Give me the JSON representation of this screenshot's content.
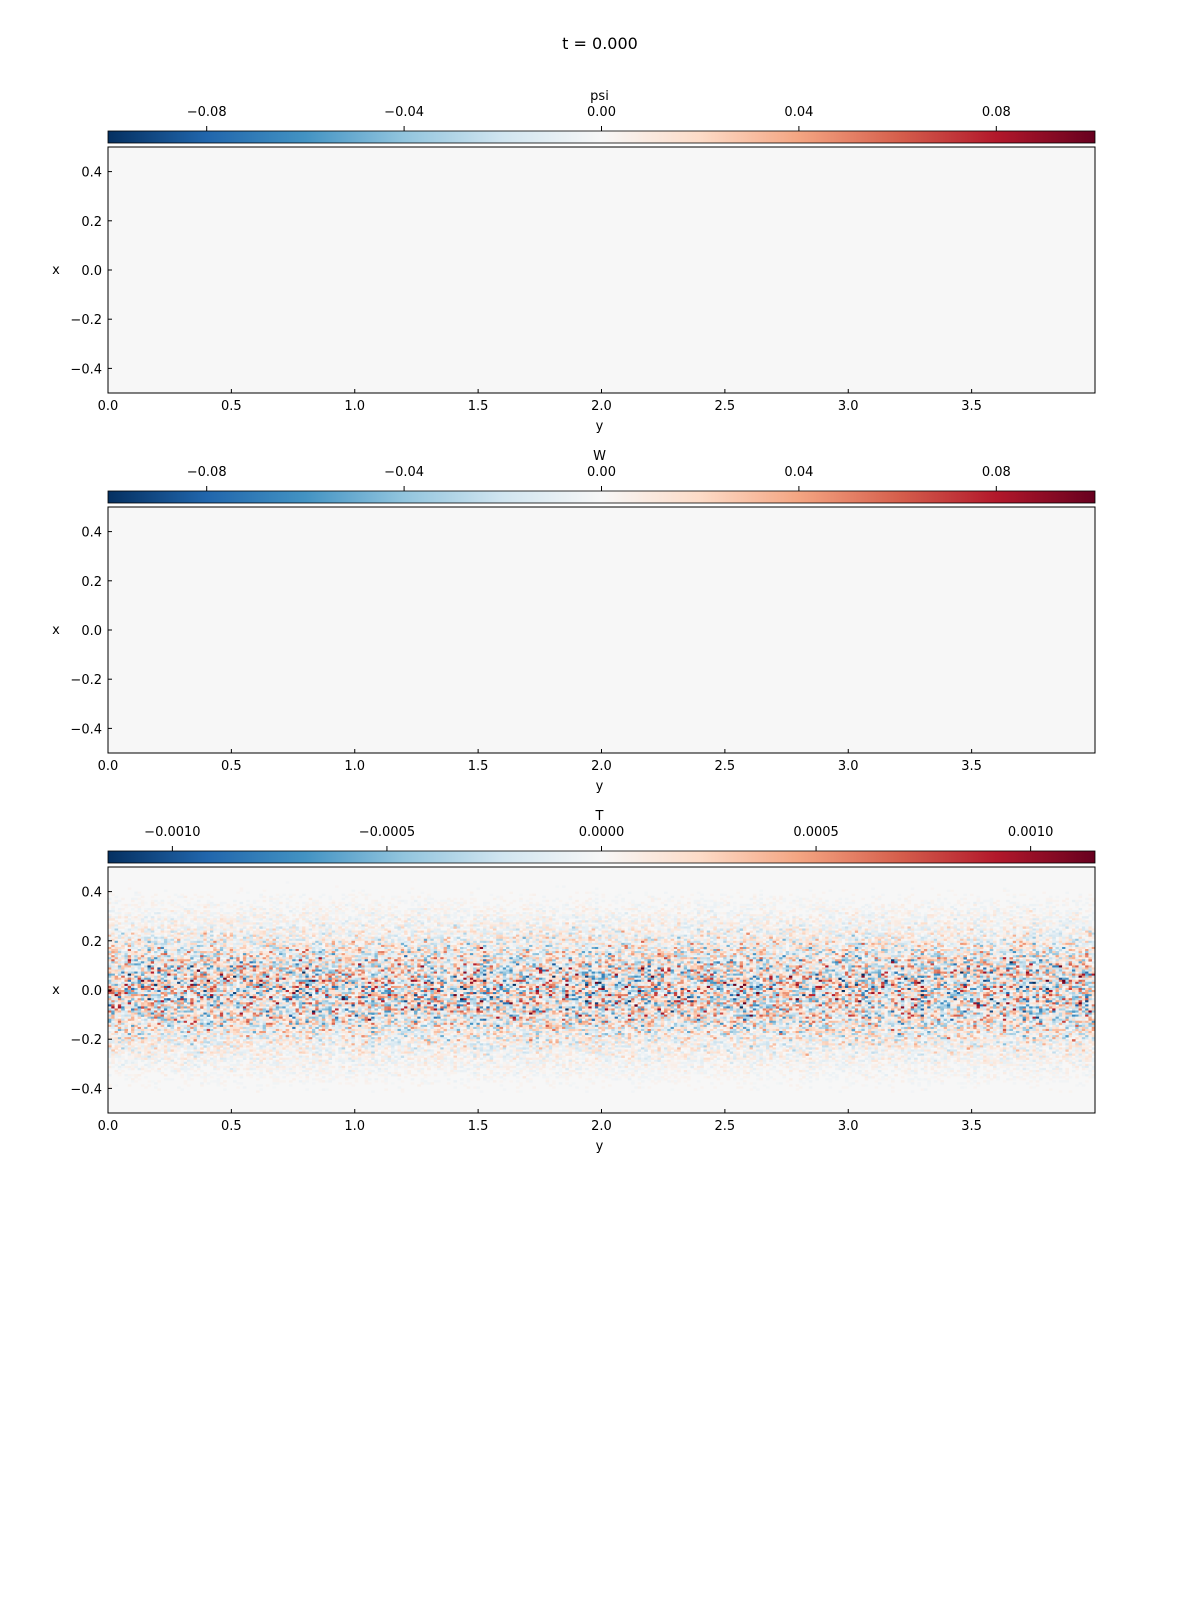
{
  "figure": {
    "title": "t = 0.000"
  },
  "colormap": [
    "#053061",
    "#2166ac",
    "#4393c3",
    "#92c5de",
    "#d1e5f0",
    "#f7f7f7",
    "#fddbc7",
    "#f4a582",
    "#d6604d",
    "#b2182b",
    "#67001f"
  ],
  "chart_data": [
    {
      "type": "heatmap",
      "colorbar_label": "psi",
      "colorbar_range": [
        -0.1,
        0.1
      ],
      "colorbar_ticks": [
        "−0.08",
        "−0.04",
        "0.00",
        "0.04",
        "0.08"
      ],
      "colorbar_tick_values": [
        -0.08,
        -0.04,
        0.0,
        0.04,
        0.08
      ],
      "xlabel": "y",
      "ylabel": "x",
      "xlim": [
        0,
        4
      ],
      "ylim": [
        -0.5,
        0.5
      ],
      "xticks": [
        "0.0",
        "0.5",
        "1.0",
        "1.5",
        "2.0",
        "2.5",
        "3.0",
        "3.5"
      ],
      "xtick_values": [
        0,
        0.5,
        1.0,
        1.5,
        2.0,
        2.5,
        3.0,
        3.5
      ],
      "yticks": [
        "0.4",
        "0.2",
        "0.0",
        "−0.2",
        "−0.4"
      ],
      "ytick_values": [
        0.4,
        0.2,
        0.0,
        -0.2,
        -0.4
      ],
      "field": "uniform",
      "field_value": 0.0
    },
    {
      "type": "heatmap",
      "colorbar_label": "W",
      "colorbar_range": [
        -0.1,
        0.1
      ],
      "colorbar_ticks": [
        "−0.08",
        "−0.04",
        "0.00",
        "0.04",
        "0.08"
      ],
      "colorbar_tick_values": [
        -0.08,
        -0.04,
        0.0,
        0.04,
        0.08
      ],
      "xlabel": "y",
      "ylabel": "x",
      "xlim": [
        0,
        4
      ],
      "ylim": [
        -0.5,
        0.5
      ],
      "xticks": [
        "0.0",
        "0.5",
        "1.0",
        "1.5",
        "2.0",
        "2.5",
        "3.0",
        "3.5"
      ],
      "xtick_values": [
        0,
        0.5,
        1.0,
        1.5,
        2.0,
        2.5,
        3.0,
        3.5
      ],
      "yticks": [
        "0.4",
        "0.2",
        "0.0",
        "−0.2",
        "−0.4"
      ],
      "ytick_values": [
        0.4,
        0.2,
        0.0,
        -0.2,
        -0.4
      ],
      "field": "uniform",
      "field_value": 0.0
    },
    {
      "type": "heatmap",
      "colorbar_label": "T",
      "colorbar_range": [
        -0.00115,
        0.00115
      ],
      "colorbar_ticks": [
        "−0.0010",
        "−0.0005",
        "0.0000",
        "0.0005",
        "0.0010"
      ],
      "colorbar_tick_values": [
        -0.001,
        -0.0005,
        0.0,
        0.0005,
        0.001
      ],
      "xlabel": "y",
      "ylabel": "x",
      "xlim": [
        0,
        4
      ],
      "ylim": [
        -0.5,
        0.5
      ],
      "xticks": [
        "0.0",
        "0.5",
        "1.0",
        "1.5",
        "2.0",
        "2.5",
        "3.0",
        "3.5"
      ],
      "xtick_values": [
        0,
        0.5,
        1.0,
        1.5,
        2.0,
        2.5,
        3.0,
        3.5
      ],
      "yticks": [
        "0.4",
        "0.2",
        "0.0",
        "−0.2",
        "−0.4"
      ],
      "ytick_values": [
        0.4,
        0.2,
        0.0,
        -0.2,
        -0.4
      ],
      "field": "random-noise",
      "field_amplitude": 0.0006,
      "noise_envelope": "strongest near x = 0, fading toward x = ±0.5"
    }
  ]
}
